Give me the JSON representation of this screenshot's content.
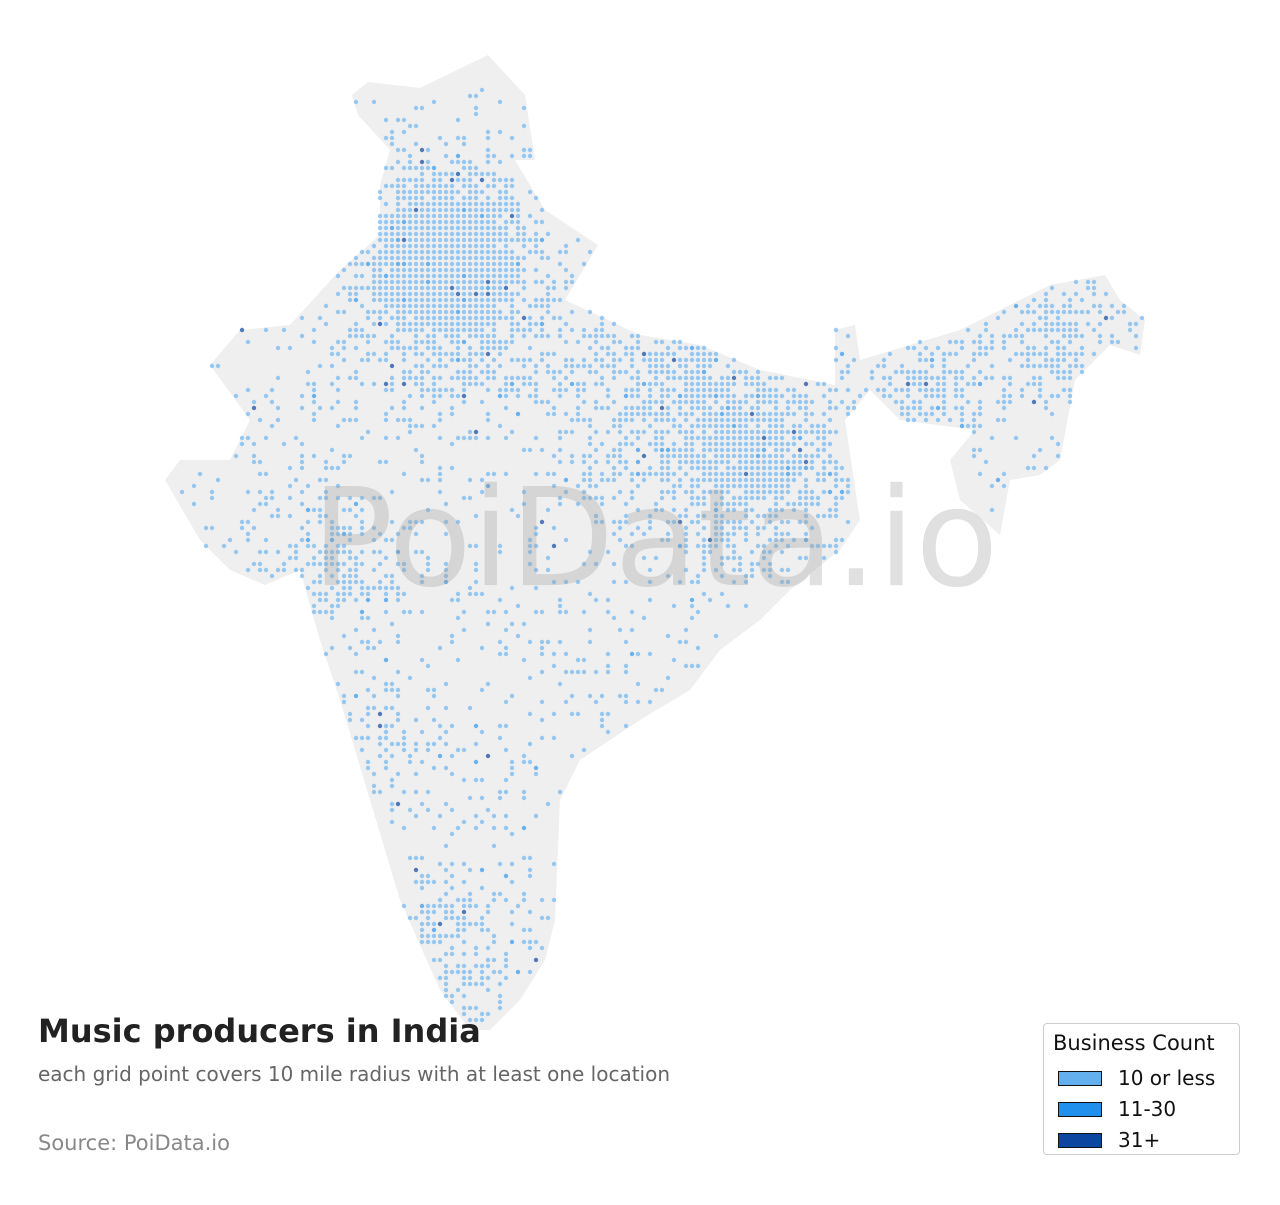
{
  "title": "Music producers in India",
  "subtitle": "each grid point covers 10 mile radius with at least one location",
  "source": "Source: PoiData.io",
  "watermark": "PoiData.io",
  "legend": {
    "title": "Business Count",
    "items": [
      {
        "label": "10 or less",
        "color": "#64b0ef"
      },
      {
        "label": "11-30",
        "color": "#2190ec"
      },
      {
        "label": "31+",
        "color": "#0b47a1"
      }
    ]
  }
}
